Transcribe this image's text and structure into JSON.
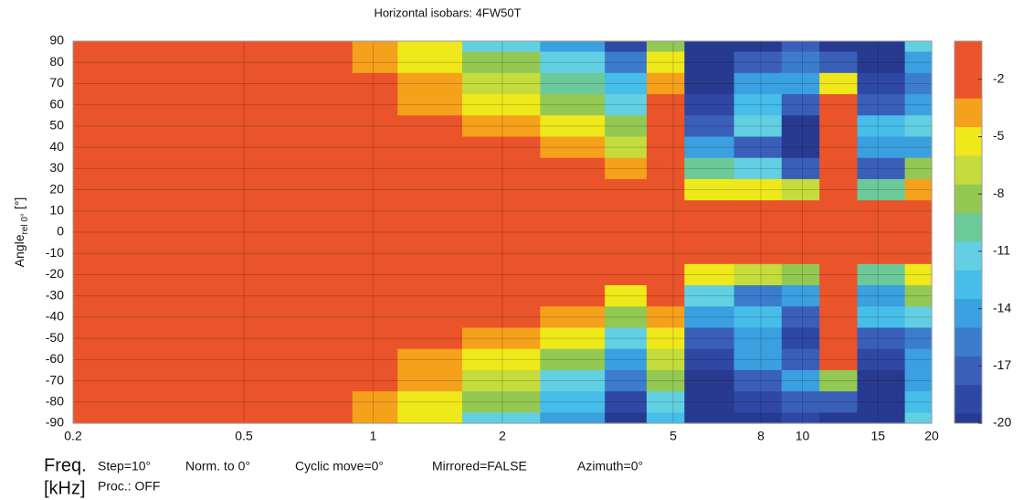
{
  "chart_data": {
    "type": "contour",
    "title": "Horizontal isobars: 4FW50T",
    "y_label": {
      "main": "Angle",
      "sub": "rel 0°",
      "unit": "[°]"
    },
    "x_label": {
      "main": "Freq.",
      "unit": "[kHz]"
    },
    "info": [
      "Step=10°",
      "Norm. to 0°",
      "Cyclic move=0°",
      "Mirrored=FALSE",
      "Azimuth=0°",
      "Proc.: OFF"
    ],
    "log_x": true,
    "xlim": [
      0.2,
      20
    ],
    "ylim": [
      -90,
      90
    ],
    "xticks": [
      0.2,
      0.5,
      1,
      2,
      5,
      8,
      10,
      15,
      20
    ],
    "yticks": [
      90,
      80,
      70,
      60,
      50,
      40,
      30,
      20,
      10,
      0,
      -10,
      -20,
      -30,
      -40,
      -50,
      -60,
      -70,
      -80,
      -90
    ],
    "grid": true,
    "x": [
      0.2,
      0.5,
      0.8,
      1,
      1.3,
      2,
      3,
      4,
      4.7,
      6,
      8,
      10,
      12,
      15,
      20
    ],
    "y": [
      90,
      80,
      70,
      60,
      50,
      40,
      30,
      20,
      10,
      0,
      -10,
      -20,
      -30,
      -40,
      -50,
      -60,
      -70,
      -80,
      -90
    ],
    "z": [
      [
        -1,
        -2,
        -2.5,
        -4,
        -6,
        -12,
        -15,
        -19,
        -9,
        -20,
        -20,
        -18,
        -20,
        -20,
        -12
      ],
      [
        -0.5,
        -1,
        -1.5,
        -3.5,
        -5.5,
        -9,
        -12,
        -16,
        -6,
        -20,
        -17,
        -16,
        -18,
        -20,
        -14
      ],
      [
        -0.5,
        -0.5,
        -1,
        -2,
        -4,
        -7,
        -10,
        -13,
        -4,
        -20,
        -15,
        -14,
        -6,
        -19,
        -16
      ],
      [
        -0.5,
        -0.5,
        -1,
        -1.5,
        -3.5,
        -6,
        -8,
        -12,
        -2,
        -19,
        -13,
        -18,
        -1,
        -17,
        -15
      ],
      [
        -0.5,
        -0.5,
        -0.5,
        -1,
        -2,
        -4,
        -6,
        -9,
        -2,
        -17,
        -12,
        -20,
        -2,
        -13,
        -12
      ],
      [
        -0.5,
        -0.5,
        -0.5,
        -1,
        -1.5,
        -2.5,
        -4,
        -7,
        -2,
        -14,
        -17,
        -20,
        -2,
        -15,
        -14
      ],
      [
        0,
        0,
        -0.5,
        -0.5,
        -1,
        -1.5,
        -2.5,
        -4,
        -1.5,
        -10,
        -12,
        -18,
        -2,
        -18,
        -8
      ],
      [
        0,
        0,
        0,
        -0.5,
        -0.5,
        -1,
        -1.5,
        -2.5,
        -1,
        -5,
        -6,
        -7,
        -1.5,
        -10,
        -4
      ],
      [
        0,
        0,
        0,
        0,
        0,
        -0.5,
        -0.5,
        -1,
        -0.5,
        -2,
        -2,
        -2,
        -1,
        -3,
        -2
      ],
      [
        0,
        0,
        0,
        0,
        0,
        0,
        0,
        0,
        0,
        0,
        0,
        0,
        0,
        0,
        0
      ],
      [
        0,
        0,
        0,
        0,
        0,
        -0.5,
        -0.5,
        -1,
        -0.5,
        -2,
        -2,
        -2.5,
        -1,
        -3,
        -2
      ],
      [
        0,
        0,
        0,
        -0.5,
        -0.5,
        -1,
        -1.5,
        -3,
        -2,
        -6,
        -7,
        -8,
        -2,
        -10,
        -5
      ],
      [
        0,
        0,
        -0.5,
        -0.5,
        -1,
        -1.5,
        -3,
        -5,
        -3,
        -11,
        -16,
        -14,
        -2,
        -15,
        -9
      ],
      [
        -0.5,
        -0.5,
        -0.5,
        -1,
        -1.5,
        -2.5,
        -4.5,
        -8,
        -4,
        -15,
        -13,
        -17,
        -2,
        -13,
        -12
      ],
      [
        -0.5,
        -0.5,
        -0.5,
        -1,
        -2,
        -4,
        -6,
        -11,
        -6,
        -18,
        -14,
        -19,
        -2,
        -17,
        -16
      ],
      [
        -0.5,
        -0.5,
        -1,
        -1.5,
        -3.5,
        -6,
        -9,
        -14,
        -7,
        -19,
        -15,
        -17,
        -3,
        -19,
        -14
      ],
      [
        -0.5,
        -0.5,
        -1,
        -2,
        -4.5,
        -7.5,
        -11,
        -16,
        -9,
        -20,
        -17,
        -15,
        -8,
        -20,
        -15
      ],
      [
        -0.5,
        -1,
        -1.5,
        -3.5,
        -5.5,
        -9,
        -13,
        -19,
        -12,
        -20,
        -19,
        -18,
        -17,
        -20,
        -13
      ],
      [
        -1,
        -2,
        -2.5,
        -4,
        -6,
        -11,
        -15,
        -20,
        -13,
        -20,
        -20,
        -19,
        -20,
        -20,
        -12
      ]
    ],
    "colorbar": {
      "zlim": [
        -20,
        0
      ],
      "ticks": [
        -2,
        -5,
        -8,
        -11,
        -14,
        -17,
        -20
      ],
      "levels": [
        0,
        -3,
        -4.5,
        -6,
        -7.5,
        -9,
        -10.5,
        -12,
        -13.5,
        -15,
        -16.5,
        -18,
        -19.5,
        -20
      ],
      "colors": [
        "#e9542a",
        "#f6a11c",
        "#efe81a",
        "#c5dc3c",
        "#93c953",
        "#6cc99a",
        "#62d0e2",
        "#47bde9",
        "#3aa0df",
        "#3b7dcc",
        "#3a5fb8",
        "#2f48a4",
        "#283a8f"
      ]
    }
  }
}
